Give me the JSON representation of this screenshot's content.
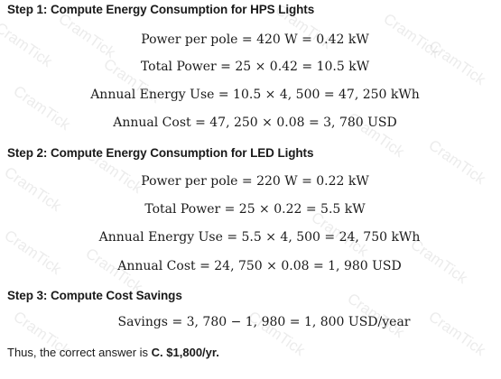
{
  "watermark": {
    "text": "CramTick"
  },
  "steps": [
    {
      "heading": "Step 1: Compute Energy Consumption for HPS Lights",
      "equations": [
        "Power per pole = 420 W = 0.42 kW",
        "Total Power = 25 × 0.42 = 10.5 kW",
        "Annual Energy Use = 10.5 × 4, 500 = 47, 250 kWh",
        "Annual Cost = 47, 250 × 0.08 = 3, 780 USD"
      ]
    },
    {
      "heading": "Step 2: Compute Energy Consumption for LED Lights",
      "equations": [
        "Power per pole = 220 W = 0.22 kW",
        "Total Power = 25 × 0.22 = 5.5 kW",
        "Annual Energy Use = 5.5 × 4, 500 = 24, 750 kWh",
        "Annual Cost = 24, 750 × 0.08 = 1, 980 USD"
      ]
    },
    {
      "heading": "Step 3: Compute Cost Savings",
      "equations": [
        "Savings = 3, 780 − 1, 980 = 1, 800 USD/year"
      ]
    }
  ],
  "conclusion": {
    "prefix": "Thus, the correct answer is ",
    "answer": "C. $1,800/yr."
  }
}
